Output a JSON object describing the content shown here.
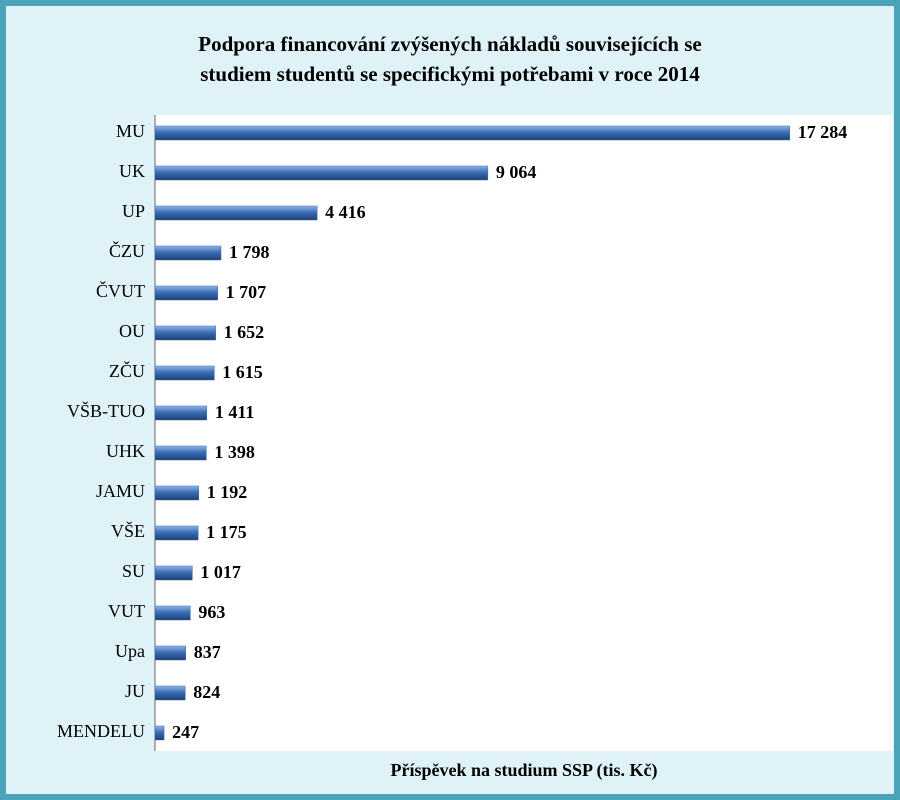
{
  "chart_data": {
    "type": "barh",
    "title": [
      "Podpora financování zvýšených nákladů souvisejících se",
      "studiem studentů se specifickými potřebami v roce 2014"
    ],
    "x_label": "Příspěvek na studium SSP (tis. Kč)",
    "categories": [
      "MU",
      "UK",
      "UP",
      "ČZU",
      "ČVUT",
      "OU",
      "ZČU",
      "VŠB-TUO",
      "UHK",
      "JAMU",
      "VŠE",
      "SU",
      "VUT",
      "Upa",
      "JU",
      "MENDELU"
    ],
    "values": [
      17284,
      9064,
      4416,
      1798,
      1707,
      1652,
      1615,
      1411,
      1398,
      1192,
      1175,
      1017,
      963,
      837,
      824,
      247
    ],
    "value_labels": [
      "17 284",
      "9 064",
      "4 416",
      "1 798",
      "1 707",
      "1 652",
      "1 615",
      "1 411",
      "1 398",
      "1 192",
      "1 175",
      "1 017",
      "963",
      "837",
      "824",
      "247"
    ],
    "color": "#3c6eb4",
    "xlim": [
      0,
      18000
    ]
  }
}
